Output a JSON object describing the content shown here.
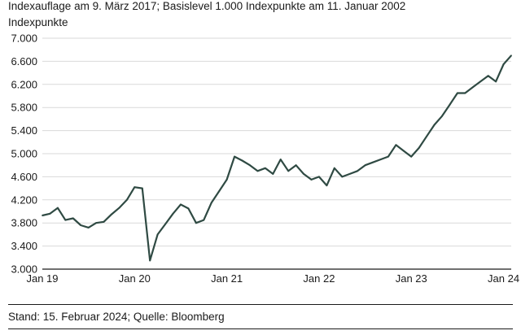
{
  "header": {
    "subtitle": "Indexauflage am 9. März 2017; Basislevel 1.000 Indexpunkte am 11. Januar 2002",
    "ylabel": "Indexpunkte"
  },
  "footer": {
    "source": "Stand: 15. Februar 2024; Quelle: Bloomberg"
  },
  "colors": {
    "line": "#2f4a43",
    "grid": "#d9d9d9",
    "axis": "#1a1a1a"
  },
  "chart_data": {
    "type": "line",
    "title": "",
    "subtitle": "Indexauflage am 9. März 2017; Basislevel 1.000 Indexpunkte am 11. Januar 2002",
    "ylabel": "Indexpunkte",
    "xlabel": "",
    "x_tick_labels": [
      "Jan 19",
      "Jan 20",
      "Jan 21",
      "Jan 22",
      "Jan 23",
      "Jan 24"
    ],
    "x_ticks": [
      "2019-01",
      "2020-01",
      "2021-01",
      "2022-01",
      "2023-01",
      "2024-01"
    ],
    "y_tick_labels": [
      "3.000",
      "3.400",
      "3.800",
      "4.200",
      "4.600",
      "5.000",
      "5.400",
      "5.800",
      "6.200",
      "6.600",
      "7.000"
    ],
    "ylim": [
      3000,
      7000
    ],
    "xlim": [
      "2019-01",
      "2024-02"
    ],
    "grid": "horizontal",
    "legend": "none",
    "series": [
      {
        "x": [
          "2019-01",
          "2019-02",
          "2019-03",
          "2019-04",
          "2019-05",
          "2019-06",
          "2019-07",
          "2019-08",
          "2019-09",
          "2019-10",
          "2019-11",
          "2019-12",
          "2020-01",
          "2020-02",
          "2020-03",
          "2020-04",
          "2020-05",
          "2020-06",
          "2020-07",
          "2020-08",
          "2020-09",
          "2020-10",
          "2020-11",
          "2020-12",
          "2021-01",
          "2021-02",
          "2021-03",
          "2021-04",
          "2021-05",
          "2021-06",
          "2021-07",
          "2021-08",
          "2021-09",
          "2021-10",
          "2021-11",
          "2021-12",
          "2022-01",
          "2022-02",
          "2022-03",
          "2022-04",
          "2022-05",
          "2022-06",
          "2022-07",
          "2022-08",
          "2022-09",
          "2022-10",
          "2022-11",
          "2022-12",
          "2023-01",
          "2023-02",
          "2023-03",
          "2023-04",
          "2023-05",
          "2023-06",
          "2023-07",
          "2023-08",
          "2023-09",
          "2023-10",
          "2023-11",
          "2023-12",
          "2024-01",
          "2024-02"
        ],
        "values": [
          3930,
          3960,
          4060,
          3850,
          3880,
          3760,
          3720,
          3800,
          3820,
          3950,
          4060,
          4200,
          4420,
          4400,
          3150,
          3600,
          3780,
          3960,
          4120,
          4050,
          3800,
          3850,
          4150,
          4350,
          4550,
          4950,
          4880,
          4800,
          4700,
          4750,
          4650,
          4900,
          4700,
          4800,
          4650,
          4550,
          4600,
          4450,
          4750,
          4600,
          4650,
          4700,
          4800,
          4850,
          4900,
          4950,
          5150,
          5050,
          4950,
          5100,
          5300,
          5500,
          5650,
          5850,
          6050,
          6050,
          6150,
          6250,
          6350,
          6250,
          6550,
          6700
        ]
      }
    ]
  }
}
